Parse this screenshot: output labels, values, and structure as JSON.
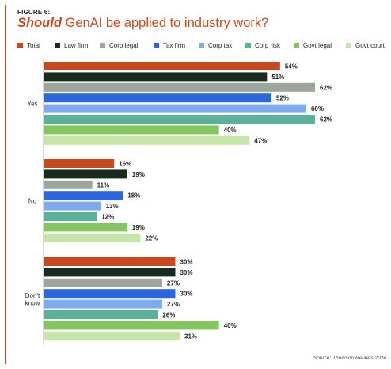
{
  "figure_label": "FIGURE 6:",
  "title": {
    "emphasis": "Should",
    "rest": " GenAI be applied to industry work?"
  },
  "source": "Source: Thomson Reuters 2024",
  "colors": {
    "accent": "#c8491d",
    "text": "#1e1e1e"
  },
  "chart_data": {
    "type": "bar",
    "orientation": "horizontal",
    "categories": [
      "Yes",
      "No",
      "Don't know"
    ],
    "category_labels": [
      [
        "Yes"
      ],
      [
        "No"
      ],
      [
        "Don't",
        "know"
      ]
    ],
    "value_suffix": "%",
    "xlim": [
      0,
      62
    ],
    "grid": false,
    "legend_position": "top",
    "series": [
      {
        "name": "Total",
        "color": "#c8491d",
        "values": [
          54,
          16,
          30
        ]
      },
      {
        "name": "Law firm",
        "color": "#172b1f",
        "values": [
          51,
          19,
          30
        ]
      },
      {
        "name": "Corp legal",
        "color": "#9ea59c",
        "values": [
          62,
          11,
          27
        ]
      },
      {
        "name": "Tax firm",
        "color": "#2a67de",
        "values": [
          52,
          18,
          30
        ]
      },
      {
        "name": "Corp tax",
        "color": "#7eaaf0",
        "values": [
          60,
          13,
          27
        ]
      },
      {
        "name": "Corp risk",
        "color": "#5bb09a",
        "values": [
          62,
          12,
          26
        ]
      },
      {
        "name": "Govt legal",
        "color": "#84c55e",
        "values": [
          40,
          19,
          40
        ]
      },
      {
        "name": "Govt court",
        "color": "#c6e5a9",
        "values": [
          47,
          22,
          31
        ]
      }
    ]
  }
}
